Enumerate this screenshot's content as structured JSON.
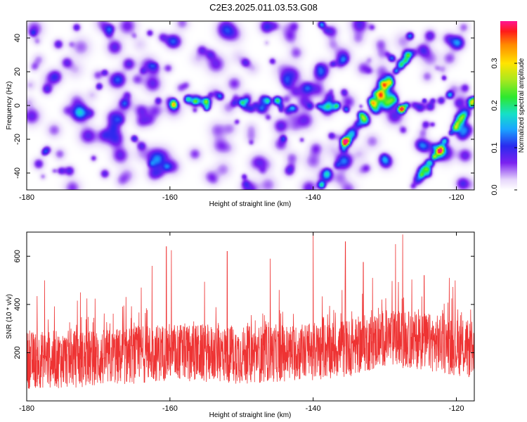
{
  "title": "C2E3.2025.011.03.53.G08",
  "chart_data": [
    {
      "type": "heatmap",
      "xlabel": "Height of straight line (km)",
      "ylabel": "Frequency (Hz)",
      "xlim": [
        -180,
        -117.5
      ],
      "ylim": [
        -50,
        50
      ],
      "xticks": [
        -180,
        -160,
        -140,
        -120
      ],
      "yticks": [
        40,
        20,
        0,
        -20,
        -40
      ],
      "colorbar": {
        "label": "Normalized spectral amplitude",
        "range": [
          0,
          0.4
        ],
        "ticks": [
          0.0,
          0.1,
          0.2,
          0.3
        ]
      },
      "hotspots": [
        {
          "x": -159.5,
          "y": 1,
          "v": 0.27
        },
        {
          "x": -157.6,
          "y": 4,
          "v": 0.16
        },
        {
          "x": -135.5,
          "y": -20.5,
          "v": 0.34
        },
        {
          "x": -127.8,
          "y": -1.5,
          "v": 0.4
        },
        {
          "x": -133.5,
          "y": -5,
          "v": 0.14
        },
        {
          "x": -132.0,
          "y": 3,
          "v": 0.13
        },
        {
          "x": -130.5,
          "y": 13,
          "v": 0.15
        },
        {
          "x": -129.0,
          "y": 28,
          "v": 0.12
        },
        {
          "x": -126.5,
          "y": 42,
          "v": 0.12
        },
        {
          "x": -121.0,
          "y": 7,
          "v": 0.14
        },
        {
          "x": -139.0,
          "y": -47,
          "v": 0.18
        },
        {
          "x": -145.0,
          "y": 3,
          "v": 0.12
        },
        {
          "x": -150.0,
          "y": 2,
          "v": 0.11
        },
        {
          "x": -153.0,
          "y": 6,
          "v": 0.11
        },
        {
          "x": -139.0,
          "y": 48,
          "v": 0.14
        },
        {
          "x": -165.0,
          "y": -19,
          "v": 0.1
        },
        {
          "x": -124.0,
          "y": -40,
          "v": 0.1
        },
        {
          "x": -170.0,
          "y": 12,
          "v": 0.09
        }
      ],
      "diagonal_bands": [
        {
          "x0": -136,
          "y0": -25,
          "x1": -126,
          "y1": 35
        },
        {
          "x0": -126,
          "y0": -48,
          "x1": -117.5,
          "y1": 5
        }
      ]
    },
    {
      "type": "line",
      "xlabel": "Height of straight line (km)",
      "ylabel": "SNR (10 * v/v)",
      "xlim": [
        -180,
        -117.5
      ],
      "ylim": [
        0,
        700
      ],
      "xticks": [
        -180,
        -160,
        -140,
        -120
      ],
      "yticks": [
        200,
        400,
        600
      ],
      "series": [
        {
          "color": "#ee3333",
          "baseline": [
            {
              "x": -180,
              "y": 170
            },
            {
              "x": -170,
              "y": 175
            },
            {
              "x": -160,
              "y": 205
            },
            {
              "x": -150,
              "y": 190
            },
            {
              "x": -140,
              "y": 205
            },
            {
              "x": -135,
              "y": 220
            },
            {
              "x": -130,
              "y": 260
            },
            {
              "x": -125,
              "y": 250
            },
            {
              "x": -117.5,
              "y": 210
            }
          ],
          "peaks": [
            {
              "x": -177.5,
              "y": 500
            },
            {
              "x": -172.5,
              "y": 450
            },
            {
              "x": -164,
              "y": 470
            },
            {
              "x": -162.5,
              "y": 560
            },
            {
              "x": -160.5,
              "y": 640
            },
            {
              "x": -159.8,
              "y": 625
            },
            {
              "x": -152,
              "y": 620
            },
            {
              "x": -146,
              "y": 590
            },
            {
              "x": -140,
              "y": 700
            },
            {
              "x": -135.5,
              "y": 660
            },
            {
              "x": -133,
              "y": 575
            },
            {
              "x": -128.5,
              "y": 650
            },
            {
              "x": -127.5,
              "y": 690
            },
            {
              "x": -124.5,
              "y": 520
            },
            {
              "x": -121,
              "y": 510
            }
          ]
        }
      ]
    }
  ],
  "colors": {
    "background": "#ffffff",
    "snr_line": "#ee3333"
  }
}
